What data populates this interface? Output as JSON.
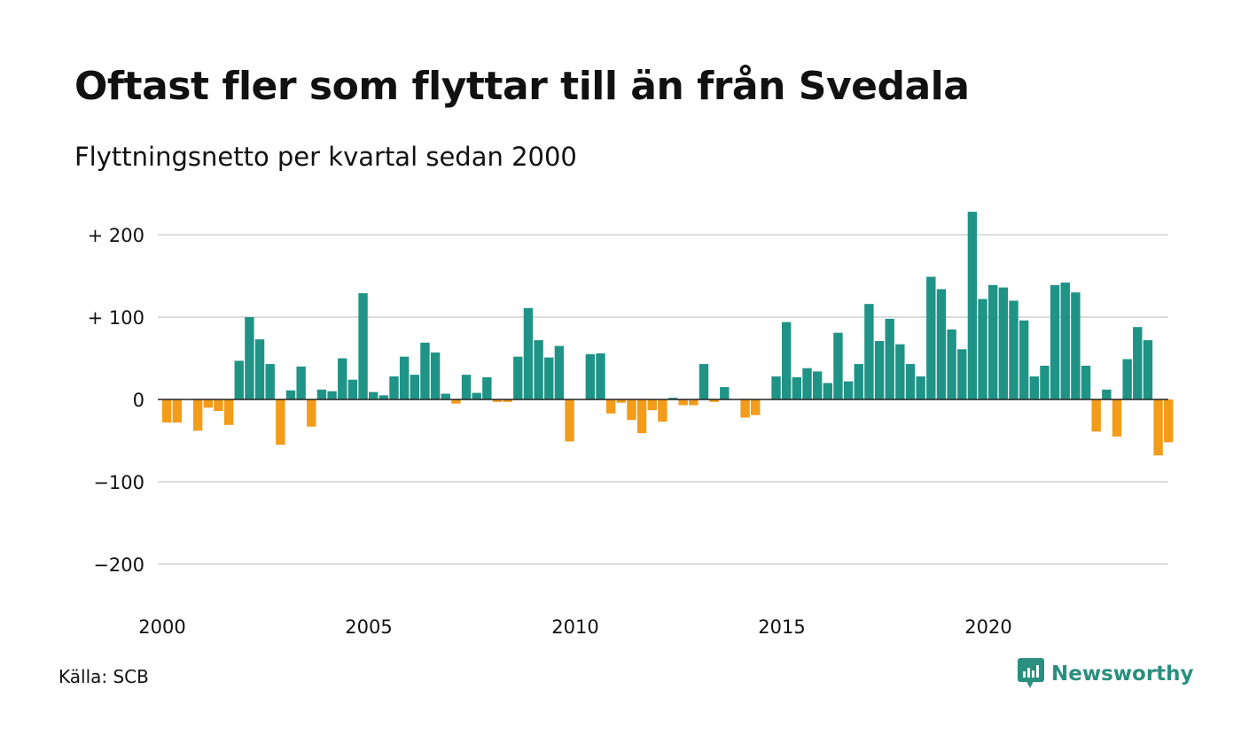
{
  "title": "Oftast fler som flyttar till än från Svedala",
  "subtitle": "Flyttningsnetto per kvartal sedan 2000",
  "source": "Källa: SCB",
  "brand": {
    "name": "Newsworthy",
    "icon": "newsworthy-logo-icon",
    "color": "#2a8f7f"
  },
  "colors": {
    "positive": "#1f9386",
    "negative": "#f39c1a",
    "grid": "#dddddd",
    "zero_line": "#222222"
  },
  "chart_data": {
    "type": "bar",
    "title": "Oftast fler som flyttar till än från Svedala",
    "subtitle": "Flyttningsnetto per kvartal sedan 2000",
    "xlabel": "",
    "ylabel": "",
    "ylim": [
      -250,
      230
    ],
    "y_ticks": [
      {
        "value": 200,
        "label": "+ 200"
      },
      {
        "value": 100,
        "label": "+ 100"
      },
      {
        "value": 0,
        "label": "0"
      },
      {
        "value": -100,
        "label": "−100"
      },
      {
        "value": -200,
        "label": "−200"
      }
    ],
    "x_ticks": [
      {
        "value": 2000,
        "label": "2000"
      },
      {
        "value": 2005,
        "label": "2005"
      },
      {
        "value": 2010,
        "label": "2010"
      },
      {
        "value": 2015,
        "label": "2015"
      },
      {
        "value": 2020,
        "label": "2020"
      }
    ],
    "grid": true,
    "legend": "none",
    "start": "2000 Q1",
    "frequency": "quarterly",
    "values": [
      -28,
      -28,
      0,
      -38,
      -10,
      -14,
      -31,
      47,
      100,
      73,
      43,
      -55,
      11,
      40,
      -33,
      12,
      10,
      50,
      24,
      129,
      9,
      5,
      28,
      52,
      30,
      69,
      57,
      7,
      -5,
      30,
      8,
      27,
      -3,
      -3,
      52,
      111,
      72,
      51,
      65,
      -51,
      0,
      55,
      56,
      -17,
      -4,
      -25,
      -41,
      -13,
      -27,
      2,
      -7,
      -7,
      43,
      -3,
      15,
      0,
      -22,
      -19,
      0,
      28,
      94,
      27,
      38,
      34,
      20,
      81,
      22,
      43,
      116,
      71,
      98,
      67,
      43,
      28,
      149,
      134,
      85,
      61,
      228,
      122,
      139,
      136,
      120,
      96,
      28,
      41,
      139,
      142,
      130,
      41,
      -39,
      12,
      -45,
      49,
      88,
      72,
      -68,
      -52
    ]
  }
}
